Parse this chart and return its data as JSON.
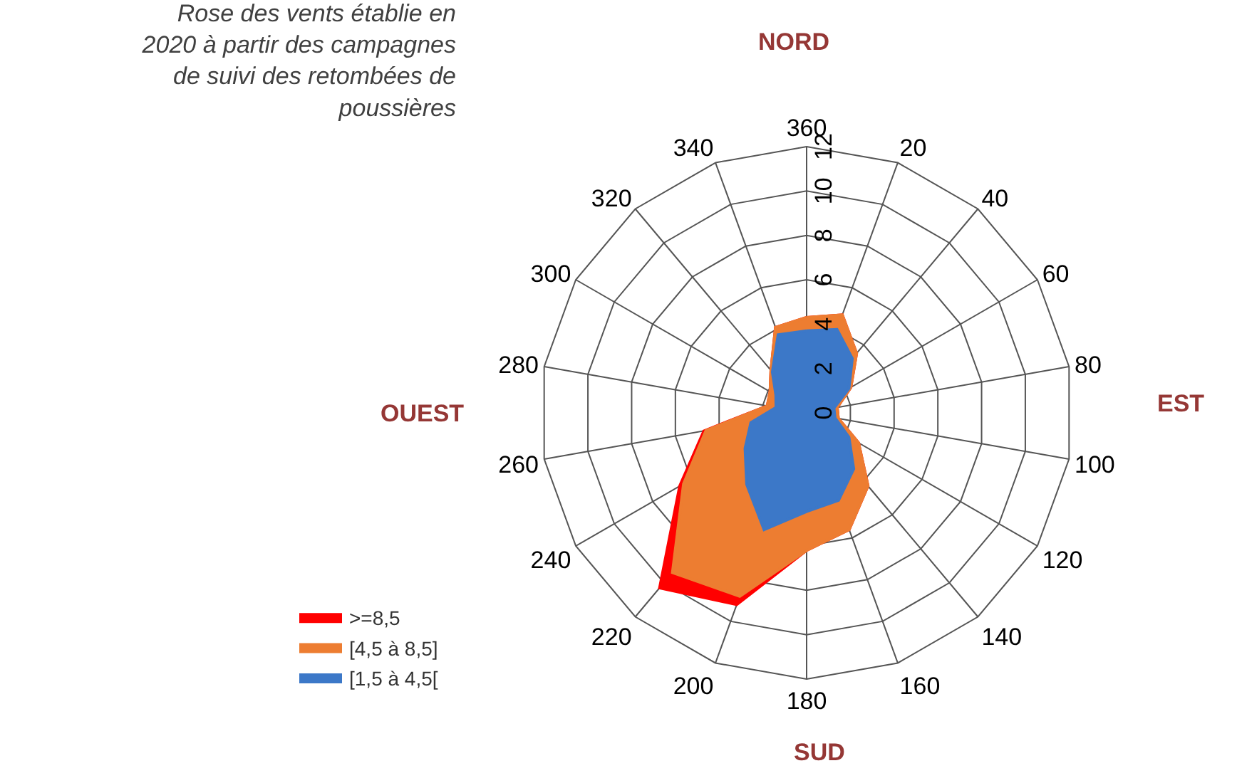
{
  "chart_data": {
    "type": "radar",
    "title": "Rose des vents établie en 2020 à partir des campagnes de suivi des retombées de poussières",
    "categories": [
      "360",
      "20",
      "40",
      "60",
      "80",
      "100",
      "120",
      "140",
      "160",
      "180",
      "200",
      "220",
      "240",
      "260",
      "280",
      "300",
      "320",
      "340"
    ],
    "series": [
      {
        "name": ">=8,5",
        "color": "#ff0000",
        "values": [
          4.3,
          4.7,
          3.5,
          2.3,
          1.4,
          1.45,
          2.7,
          4.3,
          5.6,
          6.2,
          9.2,
          10.3,
          6.6,
          4.7,
          1.8,
          1.9,
          2.5,
          4.1
        ]
      },
      {
        "name": "[4,5 à 8,5]",
        "color": "#ed7d31",
        "values": [
          4.3,
          4.7,
          3.5,
          2.3,
          1.4,
          1.45,
          2.7,
          4.3,
          5.6,
          6.2,
          8.8,
          9.4,
          6.4,
          4.6,
          1.8,
          1.9,
          2.5,
          4.1
        ]
      },
      {
        "name": "[1,5 à 4,5[",
        "color": "#3c78c8",
        "values": [
          3.7,
          4.0,
          3.2,
          2.2,
          1.25,
          1.3,
          2.2,
          3.3,
          4.2,
          4.45,
          5.6,
          4.2,
          3.2,
          2.55,
          1.4,
          1.6,
          2.4,
          3.75
        ]
      }
    ],
    "ylim": [
      0,
      12
    ],
    "yticks": [
      0,
      2,
      4,
      6,
      8,
      10,
      12
    ],
    "grid": true,
    "legend": "bottom left",
    "marker": "none",
    "annotations": [
      "NORD",
      "EST",
      "SUD",
      "OUEST"
    ]
  }
}
